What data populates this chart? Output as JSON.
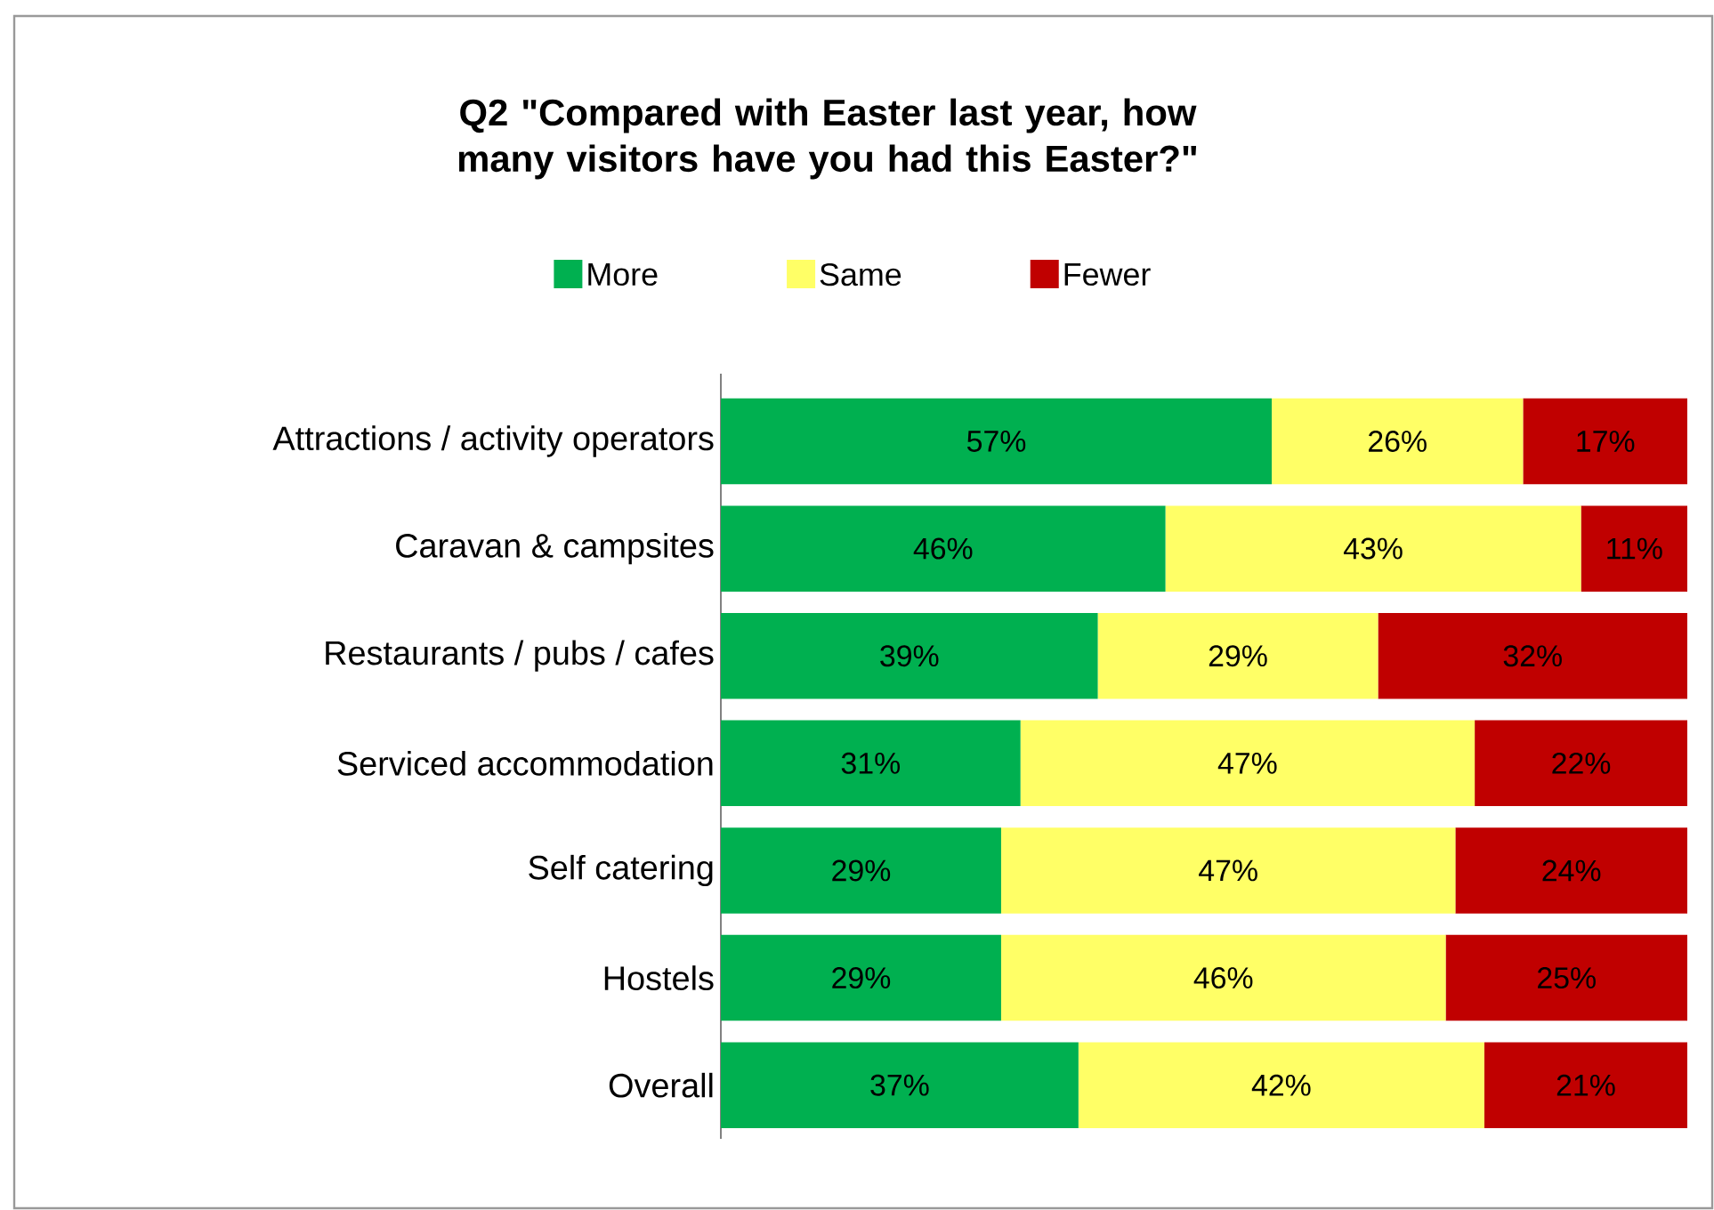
{
  "chart_data": {
    "type": "bar",
    "orientation": "horizontal",
    "stacked": true,
    "legend": "top",
    "title": "Q2 \"Compared with Easter last year, how many visitors have you had this Easter?\"",
    "categories": [
      "Attractions / activity operators",
      "Caravan & campsites",
      "Restaurants / pubs / cafes",
      "Serviced accommodation",
      "Self catering",
      "Hostels",
      "Overall"
    ],
    "series": [
      {
        "name": "More",
        "color": "#00b050",
        "values": [
          57,
          46,
          39,
          31,
          29,
          29,
          37
        ],
        "value_labels": [
          "57%",
          "46%",
          "39%",
          "31%",
          "29%",
          "29%",
          "37%"
        ]
      },
      {
        "name": "Same",
        "color": "#ffff66",
        "values": [
          26,
          43,
          29,
          47,
          47,
          46,
          42
        ],
        "value_labels": [
          "26%",
          "43%",
          "29%",
          "47%",
          "47%",
          "46%",
          "42%"
        ]
      },
      {
        "name": "Fewer",
        "color": "#c00000",
        "values": [
          17,
          11,
          32,
          22,
          24,
          25,
          21
        ],
        "value_labels": [
          "17%",
          "11%",
          "32%",
          "22%",
          "24%",
          "25%",
          "21%"
        ]
      }
    ]
  }
}
